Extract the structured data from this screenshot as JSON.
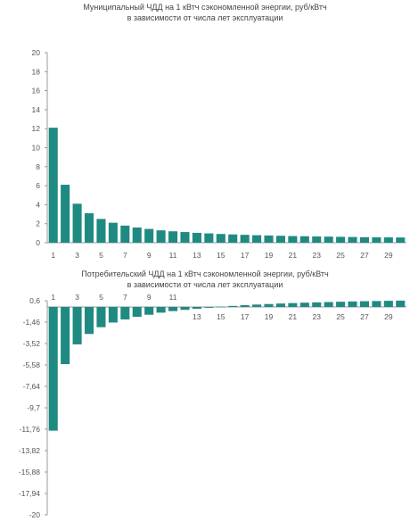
{
  "chart_data": [
    {
      "type": "bar",
      "title": "Муниципальный ЧДД на 1 кВтч сэкономленной энергии, руб/кВтч",
      "subtitle": "в зависимости от числа лет эксплуатации",
      "categories": [
        1,
        2,
        3,
        4,
        5,
        6,
        7,
        8,
        9,
        10,
        11,
        12,
        13,
        14,
        15,
        16,
        17,
        18,
        19,
        20,
        21,
        22,
        23,
        24,
        25,
        26,
        27,
        28,
        29,
        30
      ],
      "values": [
        12.1,
        6.1,
        4.1,
        3.1,
        2.5,
        2.1,
        1.8,
        1.6,
        1.45,
        1.3,
        1.2,
        1.12,
        1.04,
        0.98,
        0.92,
        0.87,
        0.83,
        0.79,
        0.76,
        0.73,
        0.7,
        0.68,
        0.66,
        0.64,
        0.62,
        0.6,
        0.58,
        0.57,
        0.56,
        0.55
      ],
      "x_tick_labels": [
        "1",
        "3",
        "5",
        "7",
        "9",
        "11",
        "13",
        "15",
        "17",
        "19",
        "21",
        "23",
        "25",
        "27",
        "29"
      ],
      "y_tick_labels": [
        "0",
        "2",
        "4",
        "6",
        "8",
        "10",
        "12",
        "14",
        "16",
        "18",
        "20"
      ],
      "ylim": [
        0,
        20
      ],
      "color": "#1f8a82",
      "grid": false,
      "legend": "none"
    },
    {
      "type": "bar",
      "title": "Потребительский ЧДД на 1 кВтч сэкономленной энергии, руб/кВтч",
      "subtitle": "в зависимости от числа лет эксплуатации",
      "categories": [
        1,
        2,
        3,
        4,
        5,
        6,
        7,
        8,
        9,
        10,
        11,
        12,
        13,
        14,
        15,
        16,
        17,
        18,
        19,
        20,
        21,
        22,
        23,
        24,
        25,
        26,
        27,
        28,
        29,
        30
      ],
      "values": [
        -11.9,
        -5.5,
        -3.6,
        -2.6,
        -1.95,
        -1.5,
        -1.2,
        -0.95,
        -0.75,
        -0.55,
        -0.4,
        -0.28,
        -0.18,
        -0.08,
        0.02,
        0.1,
        0.17,
        0.23,
        0.28,
        0.33,
        0.37,
        0.41,
        0.44,
        0.47,
        0.5,
        0.53,
        0.55,
        0.57,
        0.59,
        0.61
      ],
      "x_tick_labels_top": [
        "1",
        "3",
        "5",
        "7",
        "9",
        "11"
      ],
      "x_tick_labels_bottom": [
        "13",
        "15",
        "17",
        "19",
        "21",
        "23",
        "25",
        "27",
        "29"
      ],
      "y_tick_labels": [
        "0,6",
        "-1,46",
        "-3,52",
        "-5,58",
        "-7,64",
        "-9,7",
        "-11,76",
        "-13,82",
        "-15,88",
        "-17,94",
        "-20"
      ],
      "ylim": [
        -20,
        0.6
      ],
      "color": "#1f8a82",
      "grid": false,
      "legend": "none"
    }
  ]
}
